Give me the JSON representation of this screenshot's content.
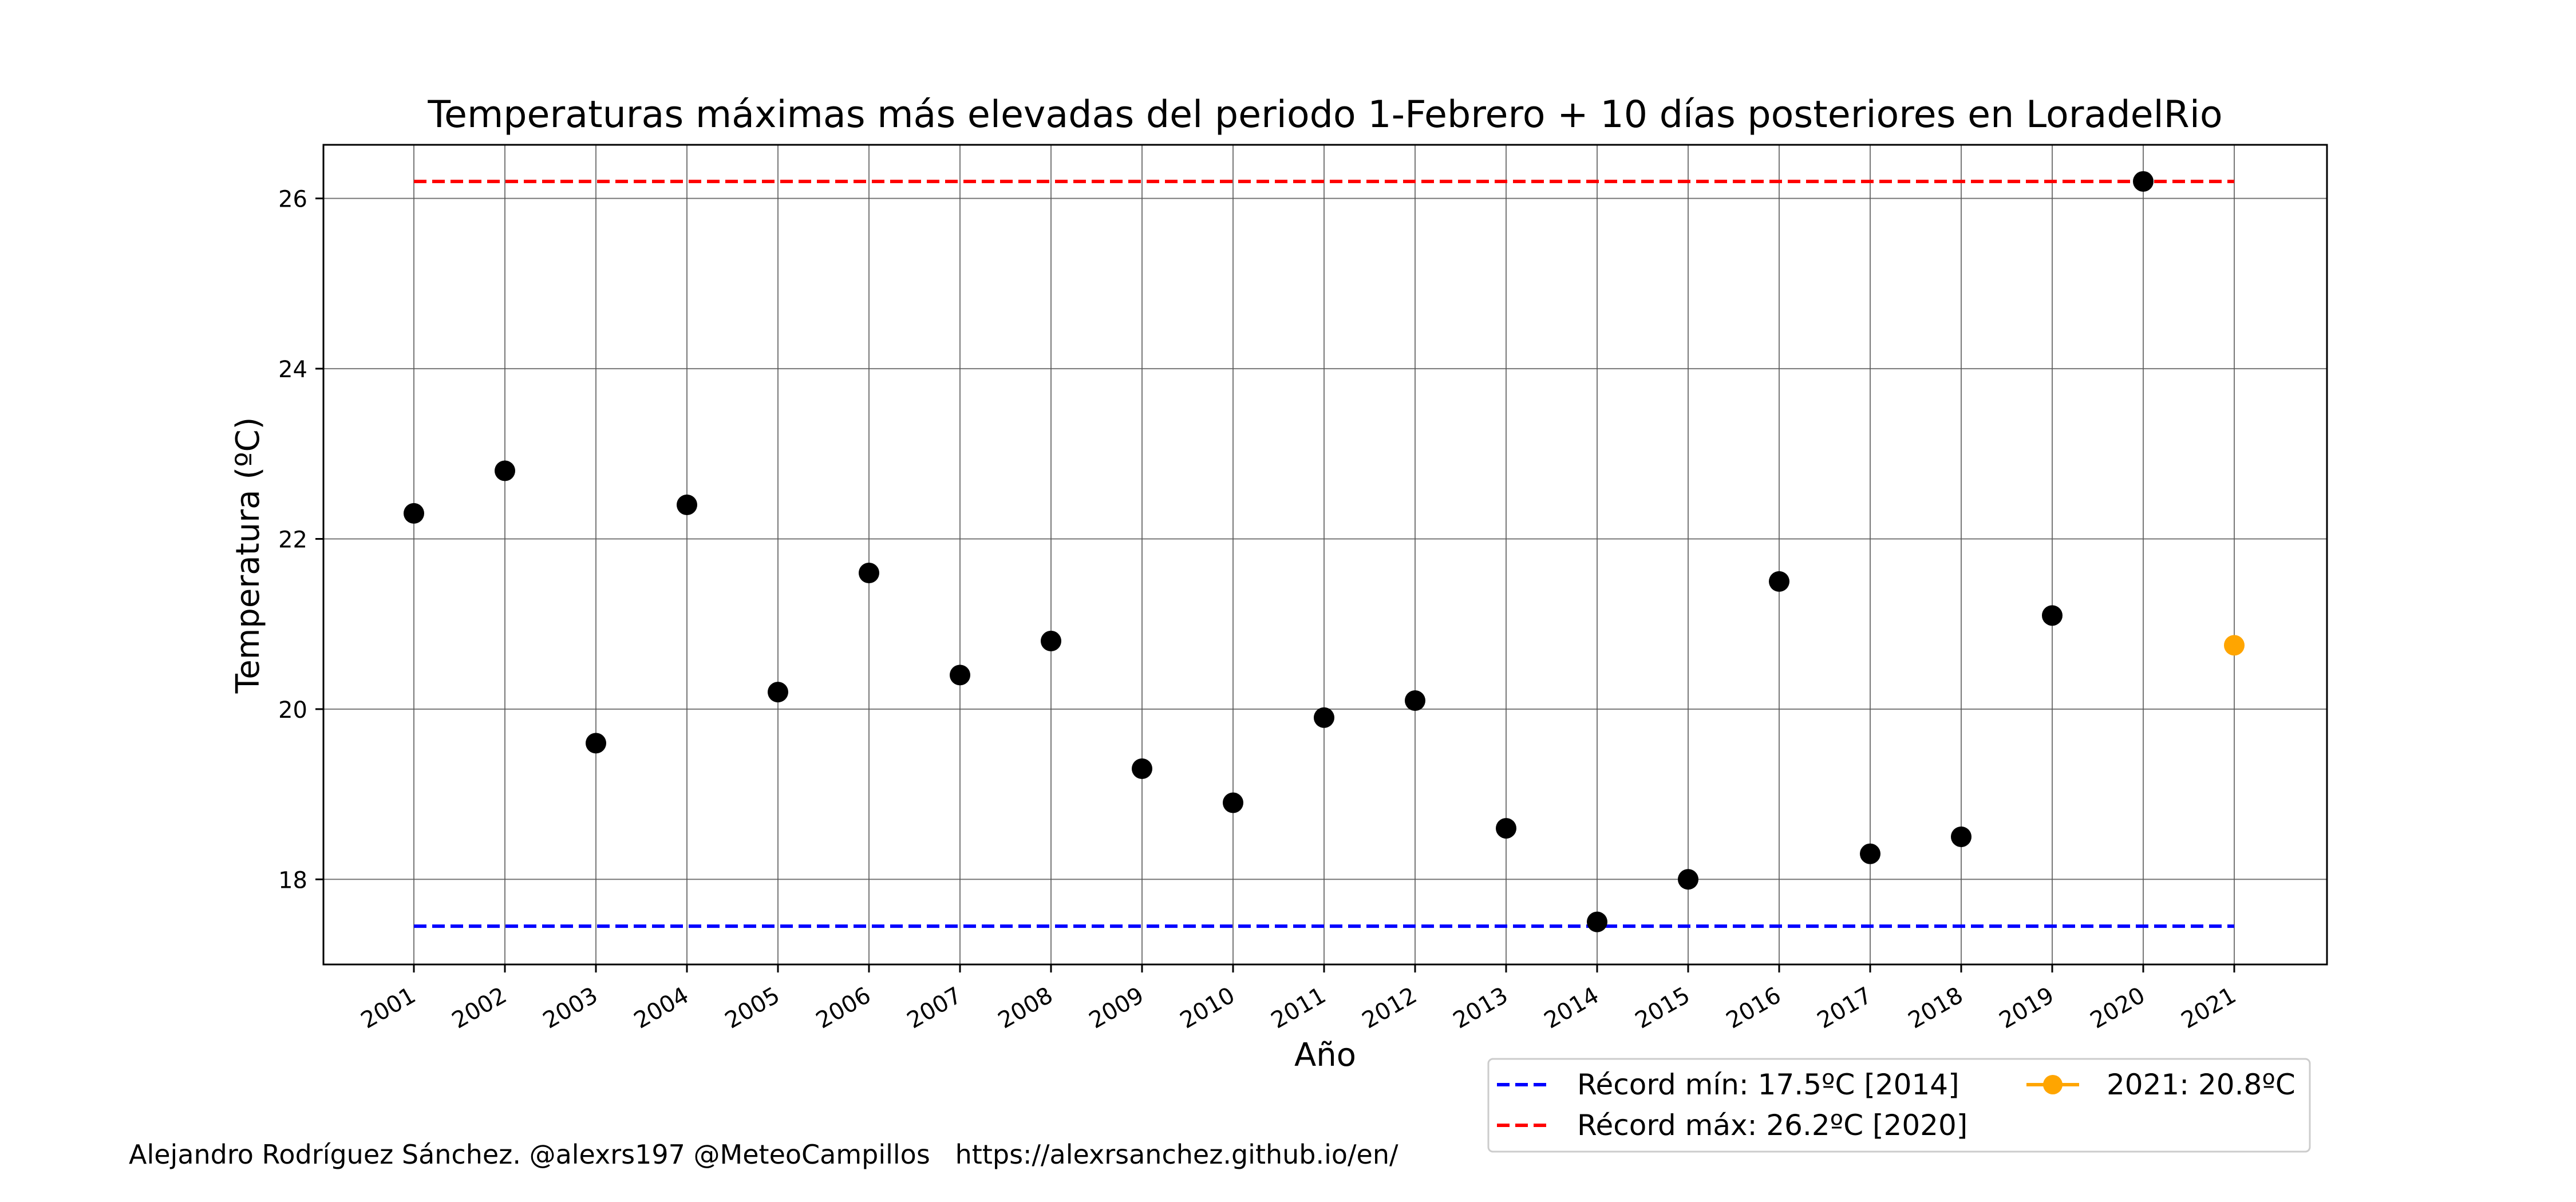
{
  "chart_data": {
    "type": "scatter",
    "title": "Temperaturas máximas más elevadas del periodo 1-Febrero + 10 días posteriores en LoradelRio",
    "xlabel": "Año",
    "ylabel": "Temperatura (ºC)",
    "x": [
      "2001",
      "2002",
      "2003",
      "2004",
      "2005",
      "2006",
      "2007",
      "2008",
      "2009",
      "2010",
      "2011",
      "2012",
      "2013",
      "2014",
      "2015",
      "2016",
      "2017",
      "2018",
      "2019",
      "2020",
      "2021"
    ],
    "series": [
      {
        "color": "#000000",
        "points": [
          {
            "x": "2001",
            "y": 22.3
          },
          {
            "x": "2002",
            "y": 22.8
          },
          {
            "x": "2003",
            "y": 19.6
          },
          {
            "x": "2004",
            "y": 22.4
          },
          {
            "x": "2005",
            "y": 20.2
          },
          {
            "x": "2006",
            "y": 21.6
          },
          {
            "x": "2007",
            "y": 20.4
          },
          {
            "x": "2008",
            "y": 20.8
          },
          {
            "x": "2009",
            "y": 19.3
          },
          {
            "x": "2010",
            "y": 18.9
          },
          {
            "x": "2011",
            "y": 19.9
          },
          {
            "x": "2012",
            "y": 20.1
          },
          {
            "x": "2013",
            "y": 18.6
          },
          {
            "x": "2014",
            "y": 17.5
          },
          {
            "x": "2015",
            "y": 18.0
          },
          {
            "x": "2016",
            "y": 21.5
          },
          {
            "x": "2017",
            "y": 18.3
          },
          {
            "x": "2018",
            "y": 18.5
          },
          {
            "x": "2019",
            "y": 21.1
          },
          {
            "x": "2020",
            "y": 26.2
          }
        ]
      },
      {
        "name": "2021: 20.8ºC",
        "color": "#ffa500",
        "points": [
          {
            "x": "2021",
            "y": 20.75
          }
        ]
      }
    ],
    "reference_lines": [
      {
        "name": "Récord mín: 17.5ºC [2014]",
        "y": 17.45,
        "color": "#0000ff",
        "style": "dashed"
      },
      {
        "name": "Récord máx: 26.2ºC [2020]",
        "y": 26.2,
        "color": "#ff0000",
        "style": "dashed"
      }
    ],
    "legend": [
      {
        "label": "Récord mín: 17.5ºC [2014]",
        "kind": "dashed",
        "color": "#0000ff"
      },
      {
        "label": "Récord máx: 26.2ºC [2020]",
        "kind": "dashed",
        "color": "#ff0000"
      },
      {
        "label": "2021: 20.8ºC",
        "kind": "marker-line",
        "color": "#ffa500"
      }
    ],
    "legend_position": "below right, outside axes",
    "yticks": [
      18,
      20,
      22,
      24,
      26
    ],
    "ylim": [
      17.0,
      26.63
    ],
    "grid": true
  },
  "footer": {
    "credit": "Alejandro Rodríguez Sánchez. @alexrs197 @MeteoCampillos   https://alexrsanchez.github.io/en/"
  }
}
